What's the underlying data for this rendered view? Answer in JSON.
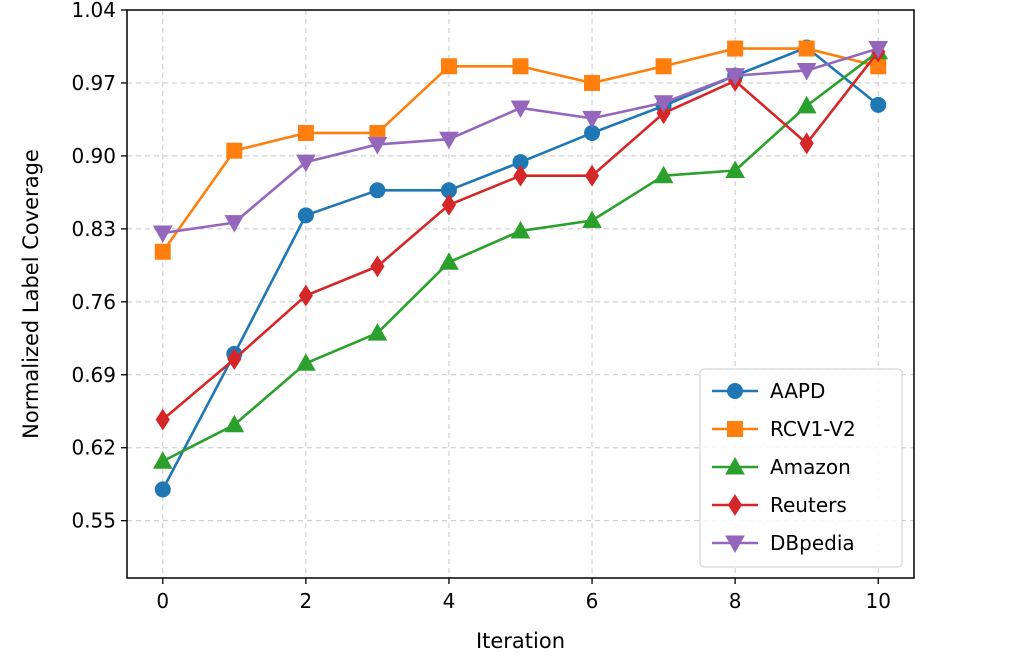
{
  "chart_data": {
    "type": "line",
    "title": "",
    "xlabel": "Iteration",
    "ylabel": "Normalized Label Coverage",
    "xlim": [
      -0.5,
      10.5
    ],
    "ylim": [
      0.495,
      1.04
    ],
    "xticks": [
      0,
      2,
      4,
      6,
      8,
      10
    ],
    "xtick_labels": [
      "0",
      "2",
      "4",
      "6",
      "8",
      "10"
    ],
    "yticks": [
      0.55,
      0.62,
      0.69,
      0.76,
      0.83,
      0.9,
      0.97,
      1.04
    ],
    "ytick_labels": [
      "0.55",
      "0.62",
      "0.69",
      "0.76",
      "0.83",
      "0.90",
      "0.97",
      "1.04"
    ],
    "grid": true,
    "legend_position": "lower-right",
    "x": [
      0,
      1,
      2,
      3,
      4,
      5,
      6,
      7,
      8,
      9,
      10
    ],
    "series": [
      {
        "name": "AAPD",
        "color": "#1f77b4",
        "marker": "circle",
        "values": [
          0.58,
          0.71,
          0.843,
          0.867,
          0.867,
          0.894,
          0.922,
          0.948,
          0.977,
          1.004,
          0.949
        ]
      },
      {
        "name": "RCV1-V2",
        "color": "#ff7f0e",
        "marker": "square",
        "values": [
          0.808,
          0.905,
          0.922,
          0.922,
          0.986,
          0.986,
          0.97,
          0.986,
          1.003,
          1.003,
          0.986
        ]
      },
      {
        "name": "Amazon",
        "color": "#2ca02c",
        "marker": "triangle-up",
        "values": [
          0.607,
          0.642,
          0.701,
          0.73,
          0.798,
          0.828,
          0.838,
          0.881,
          0.886,
          0.948,
          1.0
        ]
      },
      {
        "name": "Reuters",
        "color": "#d62728",
        "marker": "diamond",
        "values": [
          0.647,
          0.705,
          0.766,
          0.794,
          0.853,
          0.881,
          0.881,
          0.941,
          0.972,
          0.912,
          1.0
        ]
      },
      {
        "name": "DBpedia",
        "color": "#9467bd",
        "marker": "triangle-down",
        "values": [
          0.826,
          0.836,
          0.894,
          0.911,
          0.916,
          0.946,
          0.936,
          0.951,
          0.977,
          0.982,
          1.003
        ]
      }
    ]
  }
}
